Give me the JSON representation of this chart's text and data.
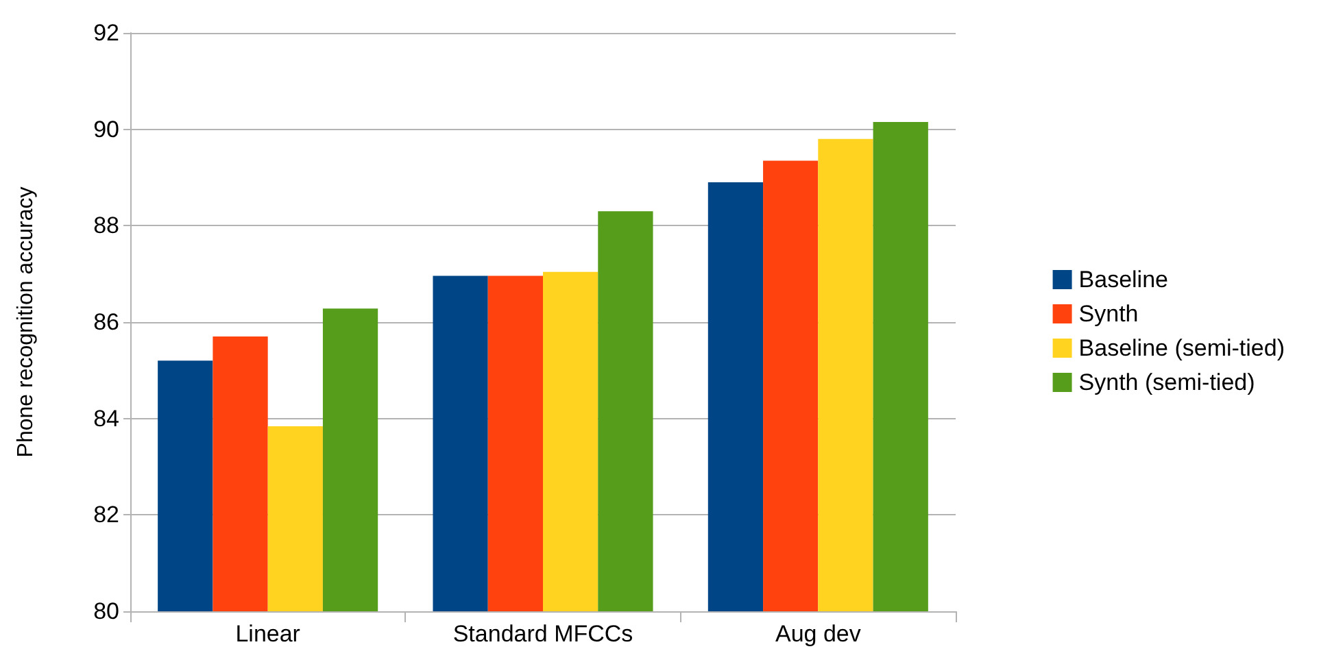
{
  "chart_data": {
    "type": "bar",
    "ylabel": "Phone recognition accuracy",
    "categories": [
      "Linear",
      "Standard MFCCs",
      "Aug dev"
    ],
    "series": [
      {
        "name": "Baseline",
        "color": "#004586",
        "values": [
          85.2,
          86.96,
          88.9
        ]
      },
      {
        "name": "Synth",
        "color": "#ff420e",
        "values": [
          85.7,
          86.96,
          89.35
        ]
      },
      {
        "name": "Baseline (semi-tied)",
        "color": "#ffd320",
        "values": [
          83.84,
          87.04,
          89.8
        ]
      },
      {
        "name": "Synth (semi-tied)",
        "color": "#579d1c",
        "values": [
          86.28,
          88.3,
          90.15
        ]
      }
    ],
    "ylim": [
      80,
      92
    ],
    "yticks": [
      80,
      82,
      84,
      86,
      88,
      90,
      92
    ],
    "grid": "y",
    "legend": "right"
  }
}
